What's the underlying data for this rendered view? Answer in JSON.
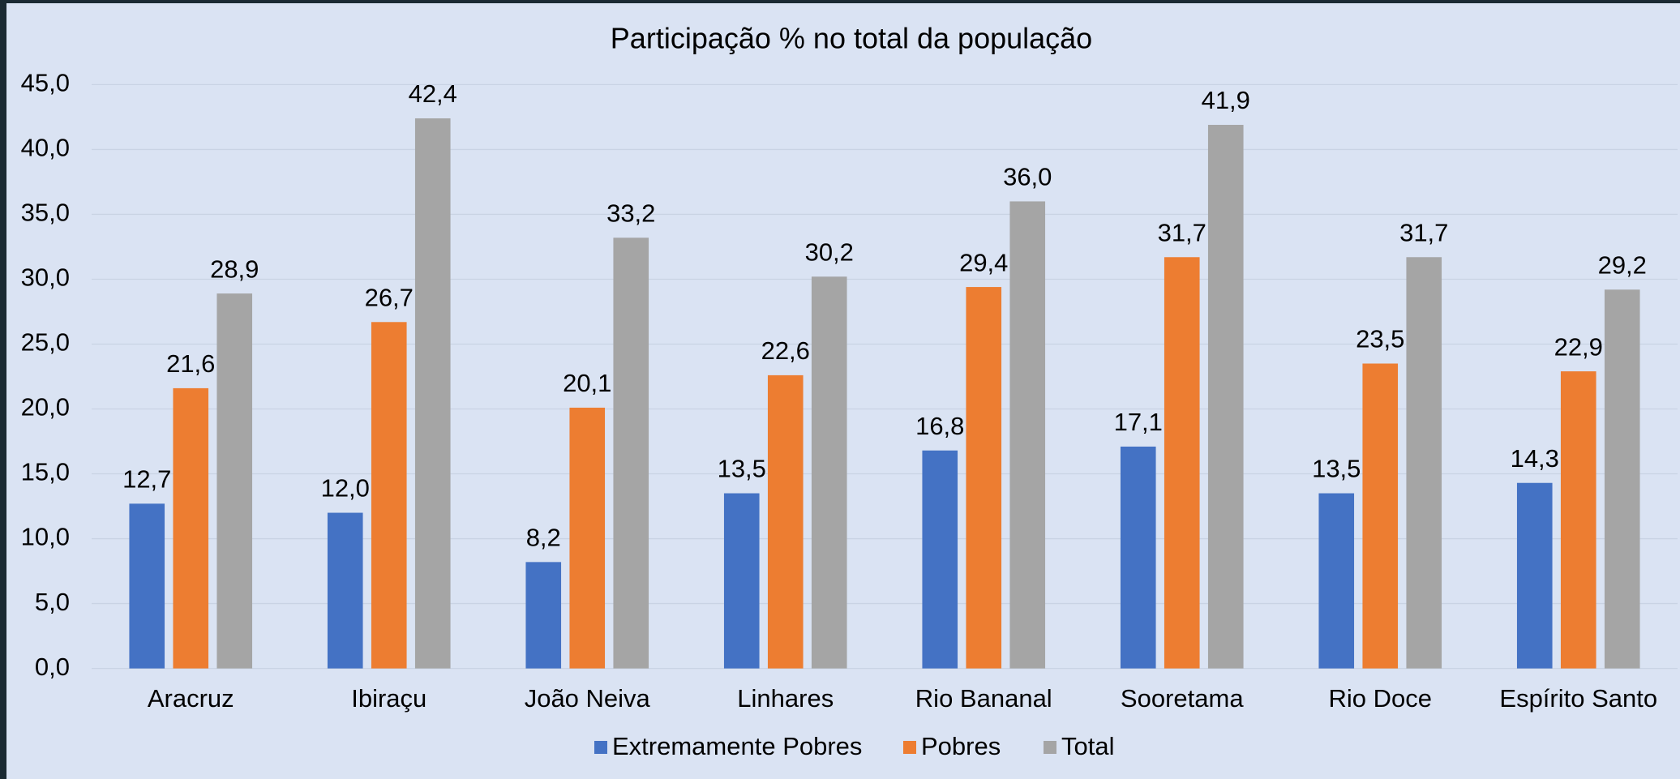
{
  "chart_data": {
    "type": "bar",
    "title": "Participação % no total da população",
    "categories": [
      "Aracruz",
      "Ibiraçu",
      "João Neiva",
      "Linhares",
      "Rio Bananal",
      "Sooretama",
      "Rio Doce",
      "Espírito Santo"
    ],
    "series": [
      {
        "name": "Extremamente Pobres",
        "color": "#4472c4",
        "values": [
          12.7,
          12.0,
          8.2,
          13.5,
          16.8,
          17.1,
          13.5,
          14.3
        ],
        "value_labels": [
          "12,7",
          "12,0",
          "8,2",
          "13,5",
          "16,8",
          "17,1",
          "13,5",
          "14,3"
        ]
      },
      {
        "name": "Pobres",
        "color": "#ed7d31",
        "values": [
          21.6,
          26.7,
          20.1,
          22.6,
          29.4,
          31.7,
          23.5,
          22.9
        ],
        "value_labels": [
          "21,6",
          "26,7",
          "20,1",
          "22,6",
          "29,4",
          "31,7",
          "23,5",
          "22,9"
        ]
      },
      {
        "name": "Total",
        "color": "#a5a5a5",
        "values": [
          28.9,
          42.4,
          33.2,
          30.2,
          36.0,
          41.9,
          31.7,
          29.2
        ],
        "value_labels": [
          "28,9",
          "42,4",
          "33,2",
          "30,2",
          "36,0",
          "41,9",
          "31,7",
          "29,2"
        ]
      }
    ],
    "ylim": [
      0,
      45
    ],
    "yticks": [
      {
        "value": 0,
        "label": "0,0"
      },
      {
        "value": 5,
        "label": "5,0"
      },
      {
        "value": 10,
        "label": "10,0"
      },
      {
        "value": 15,
        "label": "15,0"
      },
      {
        "value": 20,
        "label": "20,0"
      },
      {
        "value": 25,
        "label": "25,0"
      },
      {
        "value": 30,
        "label": "30,0"
      },
      {
        "value": 35,
        "label": "35,0"
      },
      {
        "value": 40,
        "label": "40,0"
      },
      {
        "value": 45,
        "label": "45,0"
      }
    ],
    "grid": true,
    "legend": "bottom"
  }
}
